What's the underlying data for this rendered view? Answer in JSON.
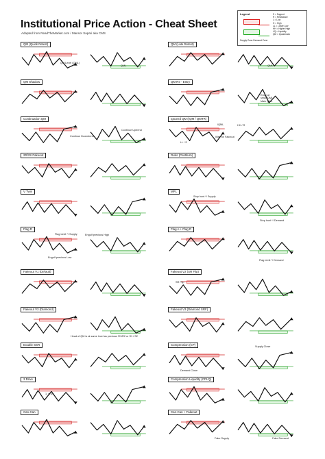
{
  "header": {
    "title": "Institutional Price Action - Cheat Sheet",
    "subtitle": "Adapted from ReadTheMarket.com / Mansor Sapari aka CMS"
  },
  "legend": {
    "title": "Legend",
    "items": [
      "S = Support",
      "R = Resistance",
      "L = Low",
      "H = High",
      "LL = Lower Low",
      "HH = Higher High",
      "LQ = Liquidity",
      "QM = Quasimodo"
    ],
    "supply_demand": "Supply Zone  Demand Zone"
  },
  "panels": {
    "left": [
      "QM (Quick Retest)",
      "QM Shadow",
      "Continuation QM",
      "2R/2S Fakeout",
      "V Twin",
      "Flag R",
      "Fakeout V1 (Default)",
      "Fakeout V3 (Diamond)",
      "Double SSR",
      "3 Drive",
      "Can-Can"
    ],
    "right": [
      "QM (Late Retest)",
      "QM Re - Entry",
      "Ignored QM (IQM / QMTR)",
      "Ruler (Pentiturn)",
      "MPL",
      "Flag A + Flag R",
      "Fakeout V2 (SR Flip)",
      "Fakeout V3 (Diamond SRF)",
      "Compression (CP)",
      "Compression Liquidity (CPLQ)",
      "Can-Can + Fakeout"
    ]
  },
  "notes": {
    "qm_level": "QM Level (QML)",
    "qml": "QML",
    "entry_at": "Entry at",
    "small_qml": "small QML",
    "main_qml": "Main QML",
    "continue_downtrend": "Continue Downtrend",
    "continue_uptrend": "Continue Uptrend",
    "iqml": "IQML",
    "wait_fakeout": "Wait for Fakeout",
    "hh_r": "HH / R",
    "ll_s": "LL / S",
    "stop_hunt_supply": "Stop hunt */ Supply",
    "stop_hunt_demand": "Stop hunt */ Demand",
    "engulf_prev_high": "Engulf previous High",
    "engulf_prev_low": "Engulf previous Low",
    "flag_limit_supply": "Flag Limit */ Supply",
    "flag_limit_demand": "Flag Limit */ Demand",
    "head_qm_note": "Head of QM is at same level as previous R1/R2 or S1 / S2",
    "supply_close": "Supply Close",
    "demand_close": "Demand Close",
    "drive": "1. drive",
    "fake_supply": "Fake Supply",
    "fake_demand": "Fake Demand",
    "sr_flip": "SR Flip"
  },
  "colors": {
    "supply": "#d22222",
    "demand": "#22a022",
    "line": "#111111"
  }
}
